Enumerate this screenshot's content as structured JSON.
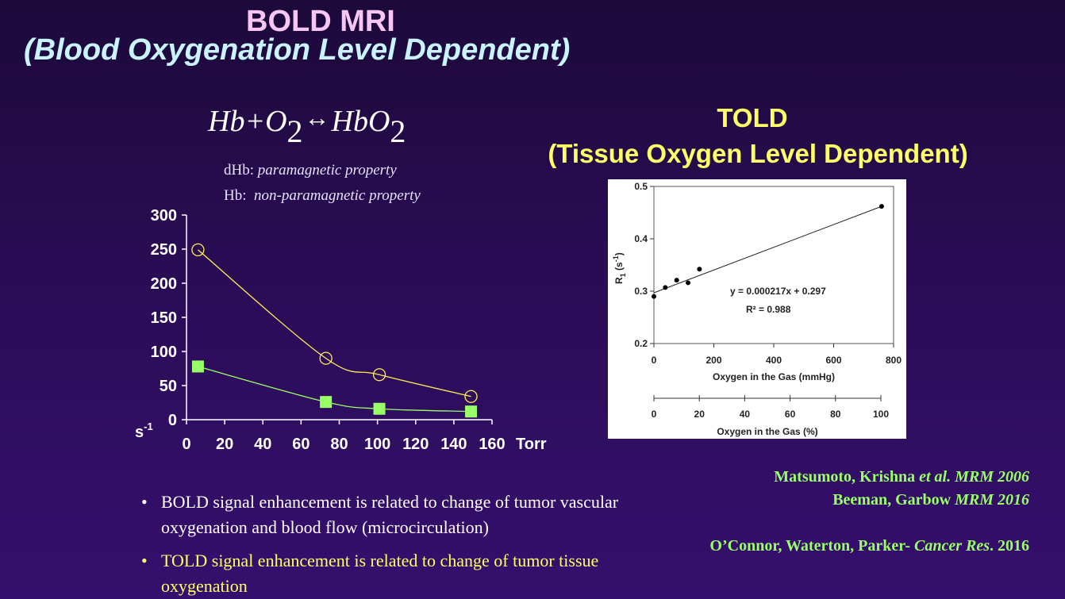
{
  "title": "BOLD MRI",
  "subtitle": "(Blood Oxygenation Level Dependent)",
  "equation": {
    "left": "Hb+O",
    "sub1": "2",
    "arrow": "↔",
    "right": "HbO",
    "sub2": "2"
  },
  "properties": [
    {
      "label": "dHb:",
      "text": "paramagnetic property"
    },
    {
      "label": "Hb:",
      "text": "non-paramagnetic property"
    }
  ],
  "told_title": "TOLD",
  "told_subtitle": "(Tissue Oxygen Level Dependent)",
  "references": [
    {
      "authors": "Matsumoto, Krishna ",
      "etal": "et al.",
      "journal": " MRM 2006"
    },
    {
      "authors": "Beeman, Garbow ",
      "journal": "MRM 2016"
    },
    {
      "authors": "O’Connor, Waterton, Parker- ",
      "journal": "Cancer Res",
      "year": ". 2016"
    }
  ],
  "bullets": [
    {
      "text": "BOLD signal enhancement is related to change of tumor vascular oxygenation and blood flow (microcirculation)",
      "color": "#ffffff"
    },
    {
      "text": "TOLD signal enhancement is related to change of tumor tissue oxygenation",
      "color": "#ffff66"
    }
  ],
  "colors": {
    "yellow_series": "#ffee55",
    "green_series": "#88ee66",
    "green_marker": "#99ff66"
  },
  "chart_data": [
    {
      "type": "line",
      "x_unit_label": "Torr",
      "y_unit_label": "s",
      "y_unit_sup": "-1",
      "xlim": [
        0,
        160
      ],
      "ylim": [
        0,
        300
      ],
      "x_ticks": [
        0,
        20,
        40,
        60,
        80,
        100,
        120,
        140,
        160
      ],
      "y_ticks": [
        0,
        50,
        100,
        150,
        200,
        250,
        300
      ],
      "series": [
        {
          "marker": "open-circle",
          "color": "#ffee55",
          "x": [
            6,
            73,
            101,
            149
          ],
          "y": [
            249,
            90,
            66,
            34
          ]
        },
        {
          "marker": "square",
          "color": "#99ff66",
          "x": [
            6,
            73,
            101,
            149
          ],
          "y": [
            78,
            26,
            16,
            12
          ]
        }
      ]
    },
    {
      "type": "scatter",
      "xlabel": "Oxygen in the Gas (mmHg)",
      "ylabel": "R1 (s-1)",
      "ylabel_main": "R",
      "ylabel_sub": "1",
      "ylabel_unit": " (s",
      "ylabel_unit_sup": "-1",
      "ylabel_close": ")",
      "xlim": [
        0,
        800
      ],
      "ylim": [
        0.2,
        0.5
      ],
      "x_ticks": [
        0,
        200,
        400,
        600,
        800
      ],
      "y_ticks": [
        "0.2",
        "0.3",
        "0.4",
        "0.5"
      ],
      "points": {
        "x": [
          0,
          38,
          76,
          114,
          152,
          760
        ],
        "y": [
          0.29,
          0.307,
          0.321,
          0.316,
          0.342,
          0.462
        ]
      },
      "fit": {
        "slope": 0.000217,
        "intercept": 0.297
      },
      "equation_label": "y = 0.000217x + 0.297",
      "r2_label": "R² = 0.988",
      "secondary_axis": {
        "label": "Oxygen in the Gas (%)",
        "xlim": [
          0,
          100
        ],
        "ticks": [
          0,
          20,
          40,
          60,
          80,
          100
        ]
      }
    }
  ]
}
